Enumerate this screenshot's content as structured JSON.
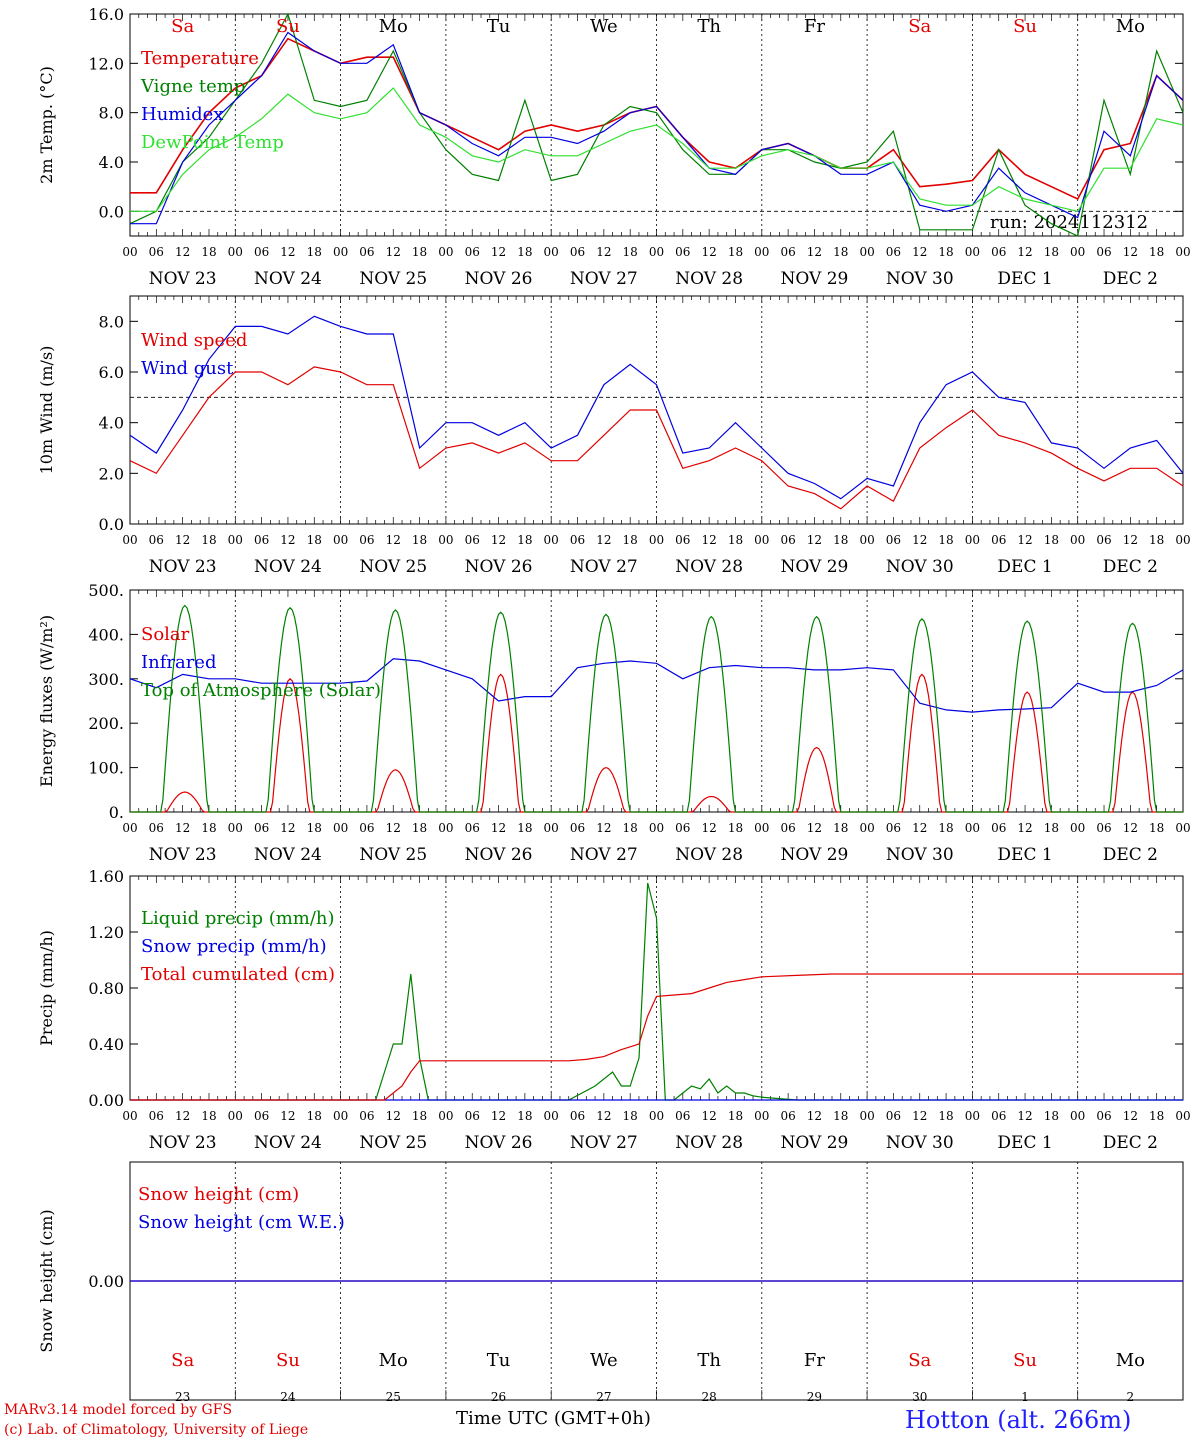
{
  "run_label": "run: 2024112312",
  "footer": {
    "model_line": "MARv3.14 model forced by GFS",
    "credit_line": "(c) Lab. of Climatology, University of Liege",
    "x_title": "Time UTC (GMT+0h)",
    "station": "Hotton (alt. 266m)"
  },
  "colors": {
    "red": "#e00000",
    "green": "#008000",
    "blue": "#0000e0",
    "lightgreen": "#30e030",
    "purple": "#800080"
  },
  "days_of_week": [
    "Sa",
    "Su",
    "Mo",
    "Tu",
    "We",
    "Th",
    "Fr",
    "Sa",
    "Su",
    "Mo"
  ],
  "weekend_flags": [
    true,
    true,
    false,
    false,
    false,
    false,
    false,
    true,
    true,
    false
  ],
  "date_labels": [
    "NOV 23",
    "NOV 24",
    "NOV 25",
    "NOV 26",
    "NOV 27",
    "NOV 28",
    "NOV 29",
    "NOV 30",
    "DEC  1",
    "DEC  2"
  ],
  "day_numbers": [
    "23",
    "24",
    "25",
    "26",
    "27",
    "28",
    "29",
    "30",
    "1",
    "2"
  ],
  "hour_labels": [
    "00",
    "06",
    "12",
    "18"
  ],
  "hour_end_label": "00",
  "chart_data": [
    {
      "type": "line",
      "ylabel": "2m Temp. (°C)",
      "ylim": [
        -2,
        16
      ],
      "yticks": [
        "0.0",
        "4.0",
        "8.0",
        "12.0",
        "16.0"
      ],
      "yticks_values": [
        0,
        4,
        8,
        12,
        16
      ],
      "ref_line": 0,
      "x_unit": "hours since Nov 23 00 UTC",
      "series": [
        {
          "name": "Temperature",
          "color": "#e00000",
          "x": [
            0,
            6,
            12,
            18,
            24,
            30,
            36,
            42,
            48,
            54,
            60,
            66,
            72,
            78,
            84,
            90,
            96,
            102,
            108,
            114,
            120,
            126,
            132,
            138,
            144,
            150,
            156,
            162,
            168,
            174,
            180,
            186,
            192,
            198,
            204,
            210,
            216,
            222,
            228,
            234,
            240
          ],
          "y": [
            1.5,
            1.5,
            5,
            8,
            10,
            11,
            14,
            13,
            12,
            12.5,
            12.5,
            8,
            7,
            6,
            5,
            6.5,
            7,
            6.5,
            7,
            8,
            8.5,
            6,
            4,
            3.5,
            5,
            5.5,
            4.5,
            3.5,
            3.5,
            5,
            2,
            2.2,
            2.5,
            5,
            3,
            2,
            1,
            5,
            5.5,
            11,
            9
          ]
        },
        {
          "name": "Vigne temp",
          "color": "#008000",
          "x": [
            0,
            6,
            12,
            18,
            24,
            30,
            36,
            42,
            48,
            54,
            60,
            66,
            72,
            78,
            84,
            90,
            96,
            102,
            108,
            114,
            120,
            126,
            132,
            138,
            144,
            150,
            156,
            162,
            168,
            174,
            180,
            186,
            192,
            198,
            204,
            210,
            216,
            222,
            228,
            234,
            240
          ],
          "y": [
            -1,
            0,
            4,
            6,
            9,
            12,
            16,
            9,
            8.5,
            9,
            13,
            8,
            5,
            3,
            2.5,
            9,
            2.5,
            3,
            7,
            8.5,
            8,
            5,
            3,
            3,
            5,
            5,
            4,
            3.5,
            4,
            6.5,
            -1.5,
            -1.5,
            -1.5,
            5,
            0.5,
            -1,
            -2,
            9,
            3,
            13,
            8
          ]
        },
        {
          "name": "Humidex",
          "color": "#0000e0",
          "x": [
            0,
            6,
            12,
            18,
            24,
            30,
            36,
            42,
            48,
            54,
            60,
            66,
            72,
            78,
            84,
            90,
            96,
            102,
            108,
            114,
            120,
            126,
            132,
            138,
            144,
            150,
            156,
            162,
            168,
            174,
            180,
            186,
            192,
            198,
            204,
            210,
            216,
            222,
            228,
            234,
            240
          ],
          "y": [
            -1,
            -1,
            4,
            7,
            9,
            11,
            14.5,
            13,
            12,
            12,
            13.5,
            8,
            7,
            5.5,
            4.5,
            6,
            6,
            5.5,
            6.5,
            8,
            8.5,
            6,
            3.5,
            3,
            5,
            5.5,
            4.5,
            3,
            3,
            4,
            0.5,
            0,
            0.5,
            3.5,
            1.5,
            0.5,
            -0.5,
            6.5,
            4.5,
            11,
            9
          ]
        },
        {
          "name": "DewPoint Temp",
          "color": "#30e030",
          "x": [
            0,
            6,
            12,
            18,
            24,
            30,
            36,
            42,
            48,
            54,
            60,
            66,
            72,
            78,
            84,
            90,
            96,
            102,
            108,
            114,
            120,
            126,
            132,
            138,
            144,
            150,
            156,
            162,
            168,
            174,
            180,
            186,
            192,
            198,
            204,
            210,
            216,
            222,
            228,
            234,
            240
          ],
          "y": [
            0,
            0,
            3,
            5,
            6,
            7.5,
            9.5,
            8,
            7.5,
            8,
            10,
            7,
            6,
            4.5,
            4,
            5,
            4.5,
            4.5,
            5.5,
            6.5,
            7,
            5.5,
            3.5,
            3.5,
            4.5,
            5,
            4.5,
            3.5,
            3.5,
            4,
            1,
            0.5,
            0.5,
            2,
            1,
            0.5,
            0,
            3.5,
            3.5,
            7.5,
            7
          ]
        }
      ]
    },
    {
      "type": "line",
      "ylabel": "10m Wind (m/s)",
      "ylim": [
        0,
        9
      ],
      "yticks": [
        "0.0",
        "2.0",
        "4.0",
        "6.0",
        "8.0"
      ],
      "yticks_values": [
        0,
        2,
        4,
        6,
        8
      ],
      "ref_line": 5,
      "x_unit": "hours since Nov 23 00 UTC",
      "series": [
        {
          "name": "Wind speed",
          "color": "#e00000",
          "x": [
            0,
            6,
            12,
            18,
            24,
            30,
            36,
            42,
            48,
            54,
            60,
            66,
            72,
            78,
            84,
            90,
            96,
            102,
            108,
            114,
            120,
            126,
            132,
            138,
            144,
            150,
            156,
            162,
            168,
            174,
            180,
            186,
            192,
            198,
            204,
            210,
            216,
            222,
            228,
            234,
            240
          ],
          "y": [
            2.5,
            2,
            3.5,
            5,
            6,
            6,
            5.5,
            6.2,
            6,
            5.5,
            5.5,
            2.2,
            3,
            3.2,
            2.8,
            3.2,
            2.5,
            2.5,
            3.5,
            4.5,
            4.5,
            2.2,
            2.5,
            3,
            2.5,
            1.5,
            1.2,
            0.6,
            1.5,
            0.9,
            3,
            3.8,
            4.5,
            3.5,
            3.2,
            2.8,
            2.2,
            1.7,
            2.2,
            2.2,
            1.5
          ]
        },
        {
          "name": "Wind gust",
          "color": "#0000e0",
          "x": [
            0,
            6,
            12,
            18,
            24,
            30,
            36,
            42,
            48,
            54,
            60,
            66,
            72,
            78,
            84,
            90,
            96,
            102,
            108,
            114,
            120,
            126,
            132,
            138,
            144,
            150,
            156,
            162,
            168,
            174,
            180,
            186,
            192,
            198,
            204,
            210,
            216,
            222,
            228,
            234,
            240
          ],
          "y": [
            3.5,
            2.8,
            4.5,
            6.5,
            7.8,
            7.8,
            7.5,
            8.2,
            7.8,
            7.5,
            7.5,
            3,
            4,
            4,
            3.5,
            4,
            3,
            3.5,
            5.5,
            6.3,
            5.5,
            2.8,
            3,
            4,
            3,
            2,
            1.6,
            1,
            1.8,
            1.5,
            4,
            5.5,
            6,
            5,
            4.8,
            3.2,
            3,
            2.2,
            3,
            3.3,
            2
          ]
        }
      ]
    },
    {
      "type": "line",
      "ylabel": "Energy fluxes (W/m²)",
      "ylim": [
        0,
        500
      ],
      "yticks": [
        "0.",
        "100.",
        "200.",
        "300.",
        "400.",
        "500."
      ],
      "yticks_values": [
        0,
        100,
        200,
        300,
        400,
        500
      ],
      "x_unit": "hours since Nov 23 00 UTC",
      "series": [
        {
          "name": "Solar",
          "color": "#e00000",
          "peaks": [
            45,
            300,
            95,
            310,
            100,
            35,
            145,
            310,
            270,
            270
          ]
        },
        {
          "name": "Infrared",
          "color": "#0000e0",
          "x": [
            0,
            6,
            12,
            18,
            24,
            30,
            36,
            42,
            48,
            54,
            60,
            66,
            72,
            78,
            84,
            90,
            96,
            102,
            108,
            114,
            120,
            126,
            132,
            138,
            144,
            150,
            156,
            162,
            168,
            174,
            180,
            186,
            192,
            198,
            204,
            210,
            216,
            222,
            228,
            234,
            240
          ],
          "y": [
            300,
            280,
            310,
            300,
            300,
            290,
            290,
            290,
            290,
            295,
            345,
            340,
            320,
            300,
            250,
            260,
            260,
            325,
            335,
            340,
            335,
            300,
            325,
            330,
            325,
            325,
            320,
            320,
            325,
            320,
            245,
            230,
            225,
            230,
            232,
            235,
            290,
            270,
            270,
            285,
            320
          ]
        },
        {
          "name": "Top of Atmosphere (Solar)",
          "color": "#008000",
          "peaks": [
            465,
            460,
            455,
            450,
            445,
            440,
            440,
            435,
            430,
            425
          ]
        }
      ]
    },
    {
      "type": "line",
      "ylabel": "Precip (mm/h)",
      "ylim": [
        0,
        1.6
      ],
      "yticks": [
        "0.00",
        "0.40",
        "0.80",
        "1.20",
        "1.60"
      ],
      "yticks_values": [
        0,
        0.4,
        0.8,
        1.2,
        1.6
      ],
      "x_unit": "hours since Nov 23 00 UTC",
      "series": [
        {
          "name": "Liquid precip (mm/h)",
          "color": "#008000",
          "x": [
            0,
            48,
            56,
            58,
            60,
            62,
            64,
            66,
            68,
            70,
            72,
            100,
            106,
            110,
            112,
            114,
            116,
            118,
            120,
            122,
            124,
            126,
            128,
            130,
            132,
            134,
            136,
            138,
            140,
            142,
            144,
            148,
            152,
            156,
            240
          ],
          "y": [
            0,
            0,
            0,
            0.2,
            0.4,
            0.4,
            0.9,
            0.3,
            0,
            0,
            0,
            0,
            0.1,
            0.2,
            0.1,
            0.1,
            0.3,
            1.55,
            1.3,
            0,
            0,
            0.05,
            0.1,
            0.08,
            0.15,
            0.05,
            0.1,
            0.05,
            0.05,
            0.03,
            0.02,
            0.01,
            0,
            0,
            0
          ]
        },
        {
          "name": "Snow precip (mm/h)",
          "color": "#0000e0",
          "x": [
            0,
            240
          ],
          "y": [
            0,
            0
          ]
        },
        {
          "name": "Total cumulated (cm)",
          "color": "#e00000",
          "x": [
            0,
            58,
            62,
            64,
            66,
            100,
            104,
            108,
            112,
            114,
            116,
            118,
            120,
            124,
            128,
            132,
            136,
            140,
            144,
            152,
            160,
            240
          ],
          "y": [
            0,
            0,
            0.1,
            0.2,
            0.28,
            0.28,
            0.29,
            0.31,
            0.36,
            0.38,
            0.4,
            0.6,
            0.74,
            0.75,
            0.76,
            0.8,
            0.84,
            0.86,
            0.88,
            0.89,
            0.9,
            0.9
          ]
        }
      ]
    },
    {
      "type": "line",
      "ylabel": "Snow height (cm)",
      "ylim": [
        -1,
        1
      ],
      "yticks": [
        "0.00"
      ],
      "yticks_values": [
        0
      ],
      "x_unit": "hours since Nov 23 00 UTC",
      "series": [
        {
          "name": "Snow height (cm)",
          "color": "#e00000",
          "x": [
            0,
            240
          ],
          "y": [
            0,
            0
          ]
        },
        {
          "name": "Snow height (cm W.E.)",
          "color": "#0000e0",
          "x": [
            0,
            240
          ],
          "y": [
            0,
            0
          ]
        }
      ]
    }
  ]
}
